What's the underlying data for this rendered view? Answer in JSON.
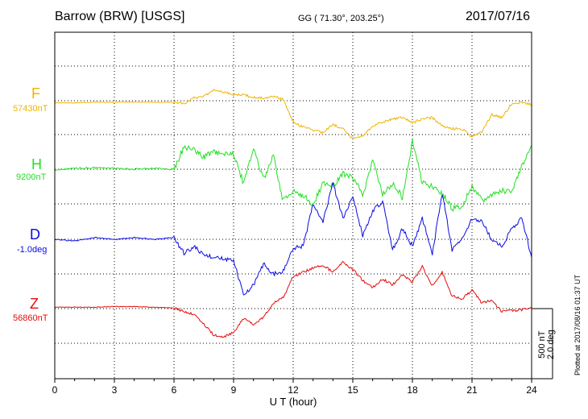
{
  "header": {
    "station": "Barrow (BRW)  [USGS]",
    "coords": "GG ( 71.30°, 203.25°)",
    "date": "2017/07/16"
  },
  "plotted_note": "Plotted at 2017/08/16 01:37 UT",
  "scale": {
    "line1": "500 nT",
    "line2": "2.0 deg"
  },
  "chart_data": {
    "type": "line",
    "xlabel": "U T (hour)",
    "xlim": [
      0,
      24
    ],
    "xticks": [
      "0",
      "3",
      "6",
      "9",
      "12",
      "15",
      "18",
      "21",
      "24"
    ],
    "colors": {
      "F": "#f0b400",
      "H": "#22e022",
      "D": "#0a0ae6",
      "Z": "#e60a0a"
    },
    "series": [
      {
        "name": "F",
        "baseline": "57430nT",
        "x": [
          0,
          1,
          2,
          3,
          4,
          5,
          6,
          6.5,
          7,
          7.5,
          8,
          8.5,
          9,
          9.5,
          10,
          10.5,
          11,
          11.5,
          12,
          12.5,
          13,
          13.5,
          14,
          14.5,
          15,
          15.5,
          16,
          16.5,
          17,
          17.5,
          18,
          18.5,
          19,
          19.5,
          20,
          20.5,
          21,
          21.5,
          22,
          22.5,
          23,
          23.5,
          24
        ],
        "y": [
          -15,
          -15,
          -10,
          -10,
          -10,
          -10,
          -10,
          -20,
          20,
          30,
          75,
          60,
          45,
          40,
          25,
          20,
          30,
          10,
          -150,
          -190,
          -210,
          -230,
          -170,
          -200,
          -270,
          -250,
          -180,
          -150,
          -130,
          -120,
          -160,
          -130,
          -120,
          -180,
          -200,
          -200,
          -260,
          -220,
          -100,
          -120,
          -20,
          -10,
          -30
        ]
      },
      {
        "name": "H",
        "baseline": "9200nT",
        "x": [
          0,
          1,
          2,
          3,
          4,
          5,
          6,
          6.5,
          7,
          7.5,
          8,
          8.5,
          9,
          9.5,
          10,
          10.5,
          11,
          11.5,
          12,
          12.5,
          13,
          13.5,
          14,
          14.5,
          15,
          15.5,
          16,
          16.5,
          17,
          17.5,
          18,
          18.5,
          19,
          19.5,
          20,
          20.5,
          21,
          21.5,
          22,
          22.5,
          23,
          23.5,
          24
        ],
        "y": [
          -5,
          5,
          10,
          5,
          0,
          5,
          0,
          160,
          135,
          90,
          125,
          100,
          110,
          -100,
          150,
          -70,
          100,
          -230,
          -150,
          -190,
          -250,
          -100,
          -120,
          -30,
          -60,
          -180,
          60,
          -180,
          -100,
          -200,
          200,
          -100,
          -120,
          -170,
          -280,
          -260,
          -120,
          -220,
          -190,
          -150,
          -160,
          30,
          150
        ]
      },
      {
        "name": "D",
        "baseline": "-1.0deg",
        "x": [
          0,
          1,
          2,
          3,
          4,
          5,
          6,
          6.5,
          7,
          7.5,
          8,
          8.5,
          9,
          9.5,
          10,
          10.5,
          11,
          11.5,
          12,
          12.5,
          13,
          13.5,
          14,
          14.5,
          15,
          15.5,
          16,
          16.5,
          17,
          17.5,
          18,
          18.5,
          19,
          19.5,
          20,
          20.5,
          21,
          21.5,
          22,
          22.5,
          23,
          23.5,
          24
        ],
        "y": [
          0.0,
          -0.05,
          0.05,
          0.0,
          0.05,
          0.0,
          0.05,
          -0.4,
          -0.2,
          -0.45,
          -0.5,
          -0.55,
          -0.6,
          -1.6,
          -1.3,
          -0.7,
          -1.0,
          -0.9,
          -0.25,
          -0.2,
          1.0,
          0.5,
          1.6,
          0.6,
          1.2,
          0.1,
          0.8,
          1.1,
          -0.3,
          0.3,
          -0.2,
          0.6,
          -0.4,
          1.3,
          -0.3,
          0.0,
          0.6,
          0.5,
          0.0,
          -0.2,
          0.3,
          0.6,
          -0.5
        ]
      },
      {
        "name": "Z",
        "baseline": "56860nT",
        "x": [
          0,
          1,
          2,
          3,
          4,
          5,
          6,
          6.5,
          7,
          7.5,
          8,
          8.5,
          9,
          9.5,
          10,
          10.5,
          11,
          11.5,
          12,
          12.5,
          13,
          13.5,
          14,
          14.5,
          15,
          15.5,
          16,
          16.5,
          17,
          17.5,
          18,
          18.5,
          19,
          19.5,
          20,
          20.5,
          21,
          21.5,
          22,
          22.5,
          23,
          23.5,
          24
        ],
        "y": [
          10,
          10,
          10,
          15,
          15,
          10,
          5,
          -20,
          -40,
          -110,
          -190,
          -200,
          -170,
          -70,
          -110,
          -60,
          40,
          80,
          230,
          260,
          290,
          310,
          260,
          330,
          280,
          200,
          150,
          210,
          170,
          240,
          190,
          300,
          160,
          260,
          90,
          70,
          130,
          40,
          60,
          -20,
          -15,
          -10,
          10
        ]
      }
    ]
  }
}
